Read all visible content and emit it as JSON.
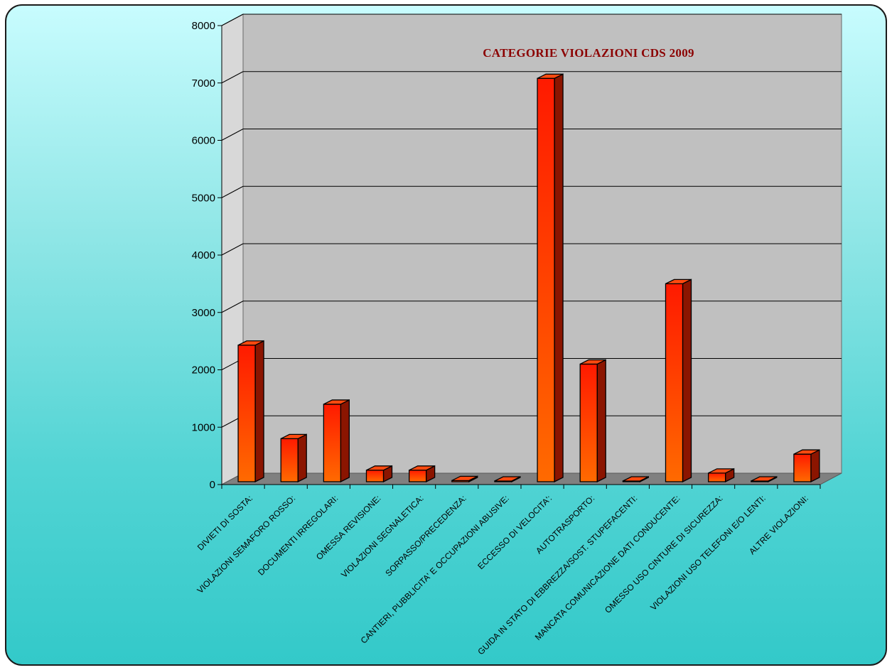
{
  "chart_data": {
    "type": "bar",
    "title": "CATEGORIE VIOLAZIONI CDS 2009",
    "categories": [
      "DIVIETI DI SOSTA:",
      "VIOLAZIONI SEMAFORO ROSSO:",
      "DOCUMENTI IRREGOLARI:",
      "OMESSA REVISIONE:",
      "VIOLAZIONI SEGNALETICA:",
      "SORPASSO/PRECEDENZA:",
      "CANTIERI, PUBBLICITA' E OCCUPAZIONI ABUSIVE:",
      "ECCESSO DI VELOCITA':",
      "AUTOTRASPORTO:",
      "GUIDA IN STATO DI EBBREZZA/SOST. STUPEFACENTI:",
      "MANCATA COMUNICAZIONE DATI CONDUCENTE:",
      "OMESSO USO CINTURE DI SICUREZZA:",
      "VIOLAZIONI USO TELEFONI E/O LENTI:",
      "ALTRE VIOLAZIONI:"
    ],
    "values": [
      2430,
      800,
      1400,
      250,
      250,
      70,
      30,
      7080,
      2100,
      10,
      3500,
      200,
      30,
      530
    ],
    "ylim": [
      0,
      8000
    ],
    "yticks": [
      0,
      1000,
      2000,
      3000,
      4000,
      5000,
      6000,
      7000,
      8000
    ],
    "grid": true,
    "three_d": true,
    "colors": {
      "bar_top": "#ff1a00",
      "bar_bottom": "#ff6a00",
      "bar_side": "#8b1500",
      "bar_cap": "#ff4a10",
      "plot_wall": "#c0c0c0",
      "floor": "#808080",
      "title": "#8b0000"
    }
  }
}
